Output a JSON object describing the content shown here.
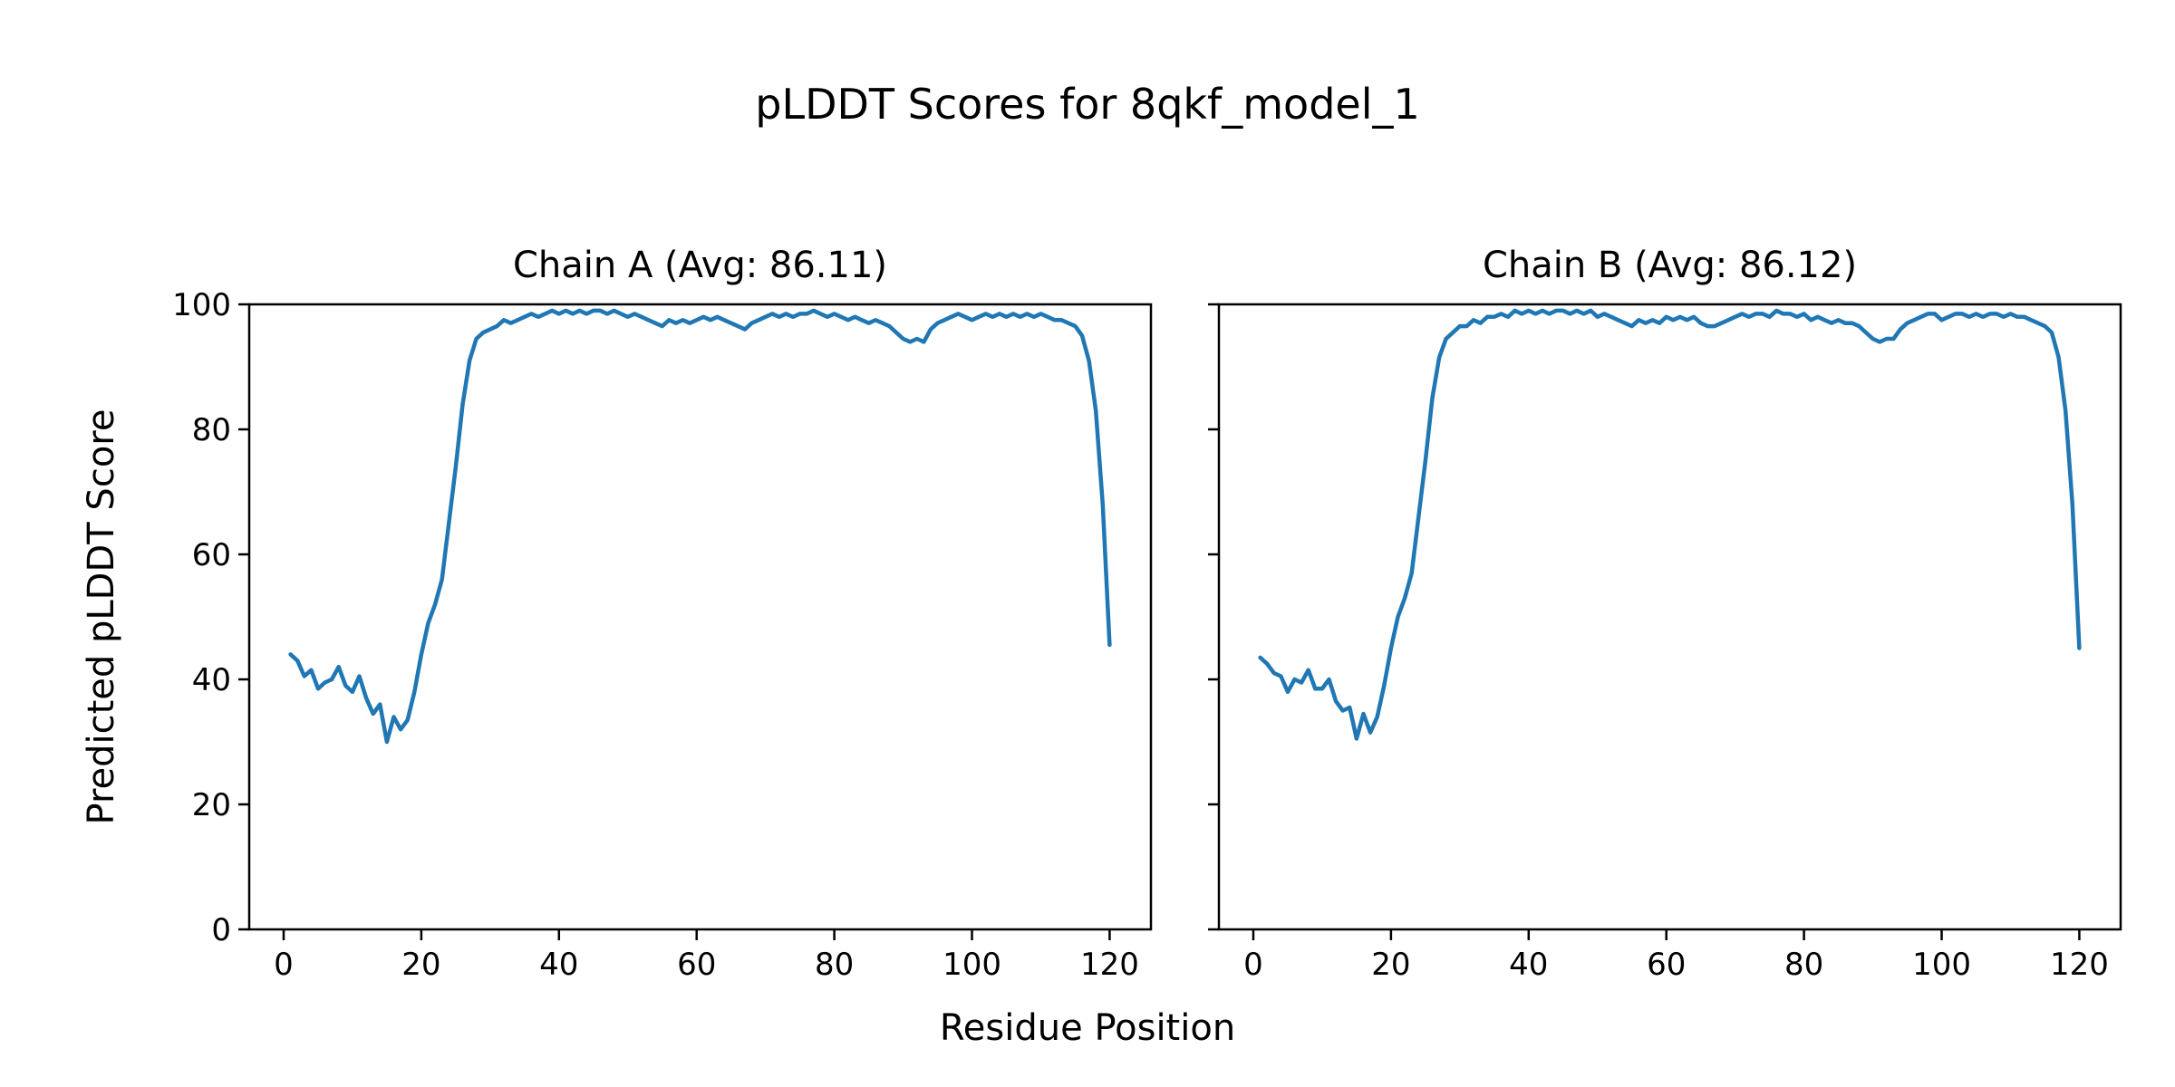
{
  "figure": {
    "title": "pLDDT Scores for 8qkf_model_1"
  },
  "chart_data": [
    {
      "type": "line",
      "title": "Chain A (Avg: 86.11)",
      "avg": 86.11,
      "xlabel": "Residue Position",
      "ylabel": "Predicted pLDDT Score",
      "xlim": [
        -5,
        126
      ],
      "ylim": [
        0,
        100
      ],
      "xticks": [
        0,
        20,
        40,
        60,
        80,
        100,
        120
      ],
      "yticks": [
        0,
        20,
        40,
        60,
        80,
        100
      ],
      "ytick_labels_visible": true,
      "grid": false,
      "legend": "none",
      "line_color": "#1f77b4",
      "x_start": 1,
      "values": [
        44,
        43,
        40.5,
        41.5,
        38.5,
        39.5,
        40,
        42,
        39,
        38,
        40.5,
        37,
        34.5,
        36,
        30,
        34,
        32,
        33.5,
        38,
        44,
        49,
        52,
        56,
        65,
        74,
        84,
        91,
        94.5,
        95.5,
        96,
        96.5,
        97.5,
        97,
        97.5,
        98,
        98.5,
        98,
        98.5,
        99,
        98.5,
        99,
        98.5,
        99,
        98.5,
        99,
        99,
        98.5,
        99,
        98.5,
        98,
        98.5,
        98,
        97.5,
        97,
        96.5,
        97.5,
        97,
        97.5,
        97,
        97.5,
        98,
        97.5,
        98,
        97.5,
        97,
        96.5,
        96,
        97,
        97.5,
        98,
        98.5,
        98,
        98.5,
        98,
        98.5,
        98.5,
        99,
        98.5,
        98,
        98.5,
        98,
        97.5,
        98,
        97.5,
        97,
        97.5,
        97,
        96.5,
        95.5,
        94.5,
        94,
        94.5,
        94,
        96,
        97,
        97.5,
        98,
        98.5,
        98,
        97.5,
        98,
        98.5,
        98,
        98.5,
        98,
        98.5,
        98,
        98.5,
        98,
        98.5,
        98,
        97.5,
        97.5,
        97,
        96.5,
        95,
        91,
        83,
        68,
        45.5
      ]
    },
    {
      "type": "line",
      "title": "Chain B (Avg: 86.12)",
      "avg": 86.12,
      "xlabel": "Residue Position",
      "ylabel": "Predicted pLDDT Score",
      "xlim": [
        -5,
        126
      ],
      "ylim": [
        0,
        100
      ],
      "xticks": [
        0,
        20,
        40,
        60,
        80,
        100,
        120
      ],
      "yticks": [
        0,
        20,
        40,
        60,
        80,
        100
      ],
      "ytick_labels_visible": false,
      "grid": false,
      "legend": "none",
      "line_color": "#1f77b4",
      "x_start": 1,
      "values": [
        43.5,
        42.5,
        41,
        40.5,
        38,
        40,
        39.5,
        41.5,
        38.5,
        38.5,
        40,
        36.5,
        35,
        35.5,
        30.5,
        34.5,
        31.5,
        34,
        39,
        45,
        50,
        53,
        57,
        66,
        75,
        85,
        91.5,
        94.5,
        95.5,
        96.5,
        96.5,
        97.5,
        97,
        98,
        98,
        98.5,
        98,
        99,
        98.5,
        99,
        98.5,
        99,
        98.5,
        99,
        99,
        98.5,
        99,
        98.5,
        99,
        98,
        98.5,
        98,
        97.5,
        97,
        96.5,
        97.5,
        97,
        97.5,
        97,
        98,
        97.5,
        98,
        97.5,
        98,
        97,
        96.5,
        96.5,
        97,
        97.5,
        98,
        98.5,
        98,
        98.5,
        98.5,
        98,
        99,
        98.5,
        98.5,
        98,
        98.5,
        97.5,
        98,
        97.5,
        97,
        97.5,
        97,
        97,
        96.5,
        95.5,
        94.5,
        94,
        94.5,
        94.5,
        96,
        97,
        97.5,
        98,
        98.5,
        98.5,
        97.5,
        98,
        98.5,
        98.5,
        98,
        98.5,
        98,
        98.5,
        98.5,
        98,
        98.5,
        98,
        98,
        97.5,
        97,
        96.5,
        95.5,
        91.5,
        83,
        68,
        45
      ]
    }
  ]
}
